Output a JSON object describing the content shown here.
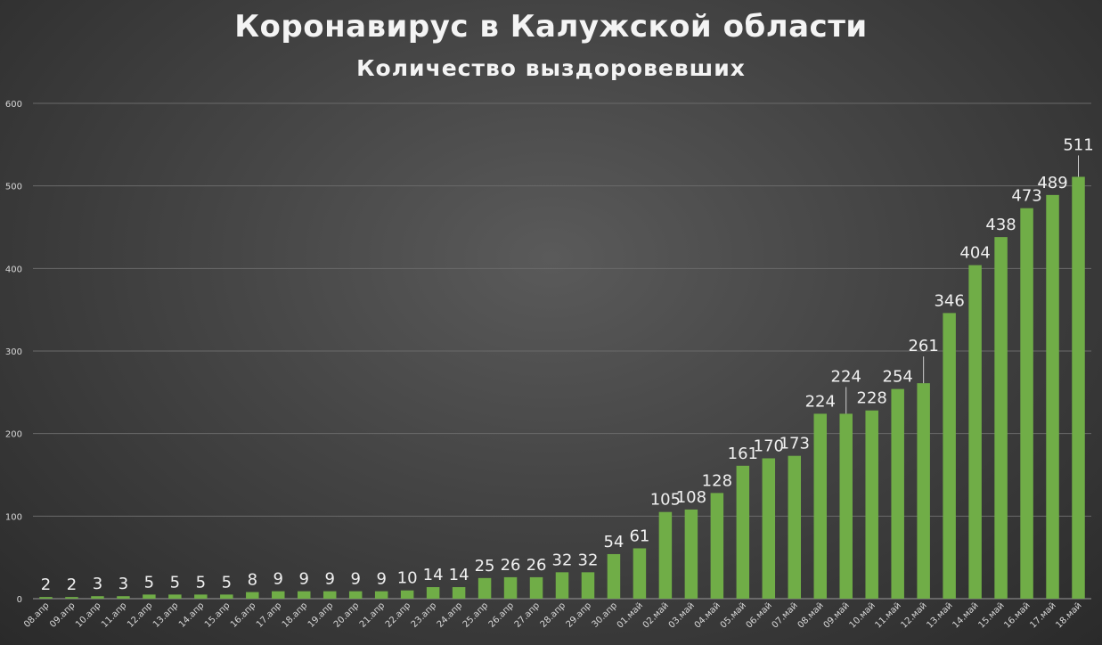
{
  "title": "Коронавирус в Калужской области",
  "subtitle": "Количество выздоровевших",
  "colors": {
    "bar": "#70ad47",
    "grid": "#6a6a6a",
    "text": "#f0f0f0"
  },
  "chart_data": {
    "type": "bar",
    "title": "Коронавирус в Калужской области",
    "subtitle": "Количество выздоровевших",
    "xlabel": "",
    "ylabel": "",
    "ylim": [
      0,
      600
    ],
    "yticks": [
      0,
      100,
      200,
      300,
      400,
      500,
      600
    ],
    "grid": true,
    "legend": "none",
    "categories": [
      "08.апр",
      "09.апр",
      "10.апр",
      "11.апр",
      "12.апр",
      "13.апр",
      "14.апр",
      "15.апр",
      "16.апр",
      "17.апр",
      "18.апр",
      "19.апр",
      "20.апр",
      "21.апр",
      "22.апр",
      "23.апр",
      "24.апр",
      "25.апр",
      "26.апр",
      "27.апр",
      "28.апр",
      "29.апр",
      "30.апр",
      "01.май",
      "02.май",
      "03.май",
      "04.май",
      "05.май",
      "06.май",
      "07.май",
      "08.май",
      "09.май",
      "10.май",
      "11.май",
      "12.май",
      "13.май",
      "14.май",
      "15.май",
      "16.май",
      "17.май",
      "18.май"
    ],
    "values": [
      2,
      2,
      3,
      3,
      5,
      5,
      5,
      5,
      8,
      9,
      9,
      9,
      9,
      9,
      10,
      14,
      14,
      25,
      26,
      26,
      32,
      32,
      54,
      61,
      105,
      108,
      128,
      161,
      170,
      173,
      224,
      224,
      228,
      254,
      261,
      346,
      404,
      438,
      473,
      489,
      511
    ]
  }
}
